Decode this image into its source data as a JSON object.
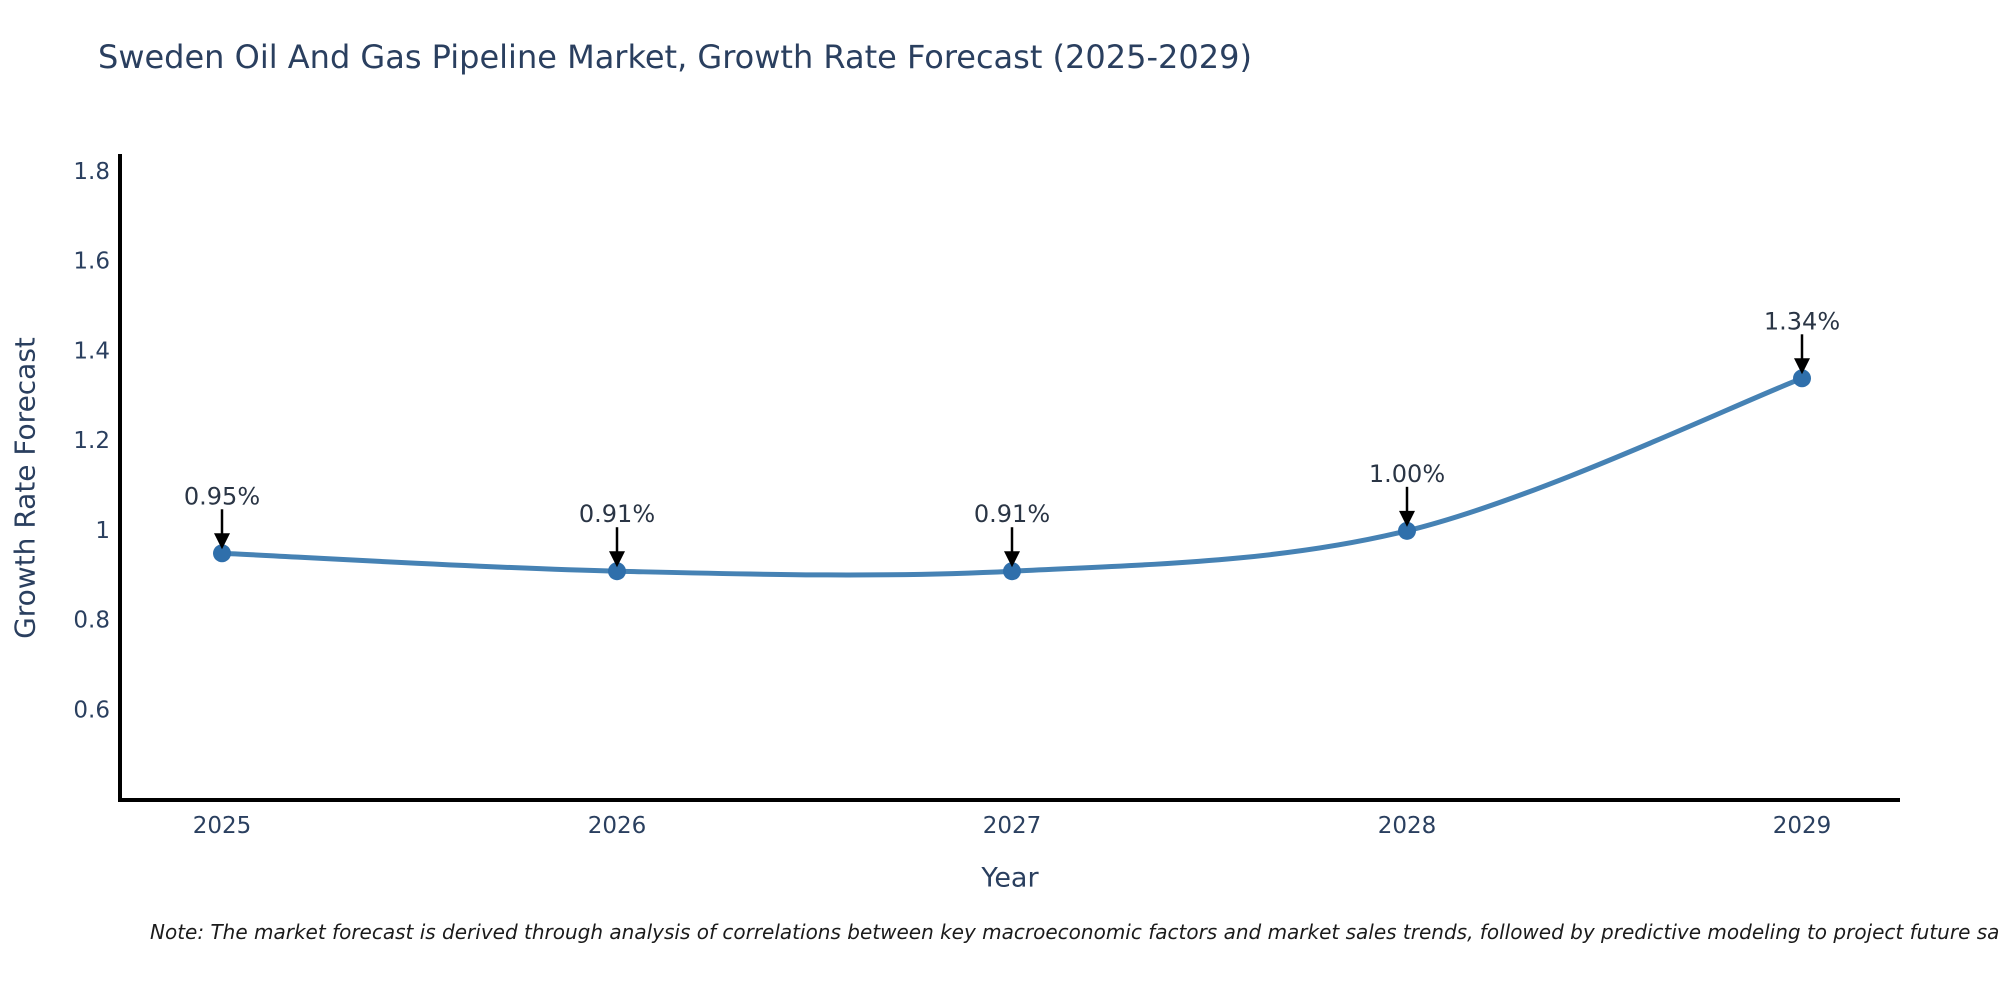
{
  "header": {
    "title": "Sweden Oil And Gas Pipeline Market, Growth Rate Forecast (2025-2029)"
  },
  "footnote": {
    "text": "Note: The market forecast is derived through analysis of correlations between key macroeconomic factors and market sales trends, followed by predictive modeling to project future sales"
  },
  "colors": {
    "line": "#4682b4",
    "marker": "#2f6fab",
    "axis": "#000000",
    "arrow": "#000000",
    "tick_text": "#2a3f5f",
    "annotation_text": "#2a3545",
    "title_text": "#2a3f5f",
    "background": "#ffffff"
  },
  "chart_data": {
    "type": "line",
    "line_shape": "spline",
    "title": "Sweden Oil And Gas Pipeline Market, Growth Rate Forecast (2025-2029)",
    "xlabel": "Year",
    "ylabel": "Growth Rate Forecast",
    "x": [
      2025,
      2026,
      2027,
      2028,
      2029
    ],
    "xticklabels": [
      "2025",
      "2026",
      "2027",
      "2028",
      "2029"
    ],
    "series": [
      {
        "name": "Growth Rate Forecast",
        "values": [
          0.95,
          0.91,
          0.91,
          1.0,
          1.34
        ]
      }
    ],
    "point_labels": [
      "0.95%",
      "0.91%",
      "0.91%",
      "1.00%",
      "1.34%"
    ],
    "yticks": [
      0.6,
      0.8,
      1,
      1.2,
      1.4,
      1.6,
      1.8
    ],
    "yticklabels": [
      "0.6",
      "0.8",
      "1",
      "1.2",
      "1.4",
      "1.6",
      "1.8"
    ],
    "ylim": [
      0.4,
      1.84
    ],
    "grid": false,
    "legend": "none",
    "annotation_style": "arrow-down-to-point"
  }
}
